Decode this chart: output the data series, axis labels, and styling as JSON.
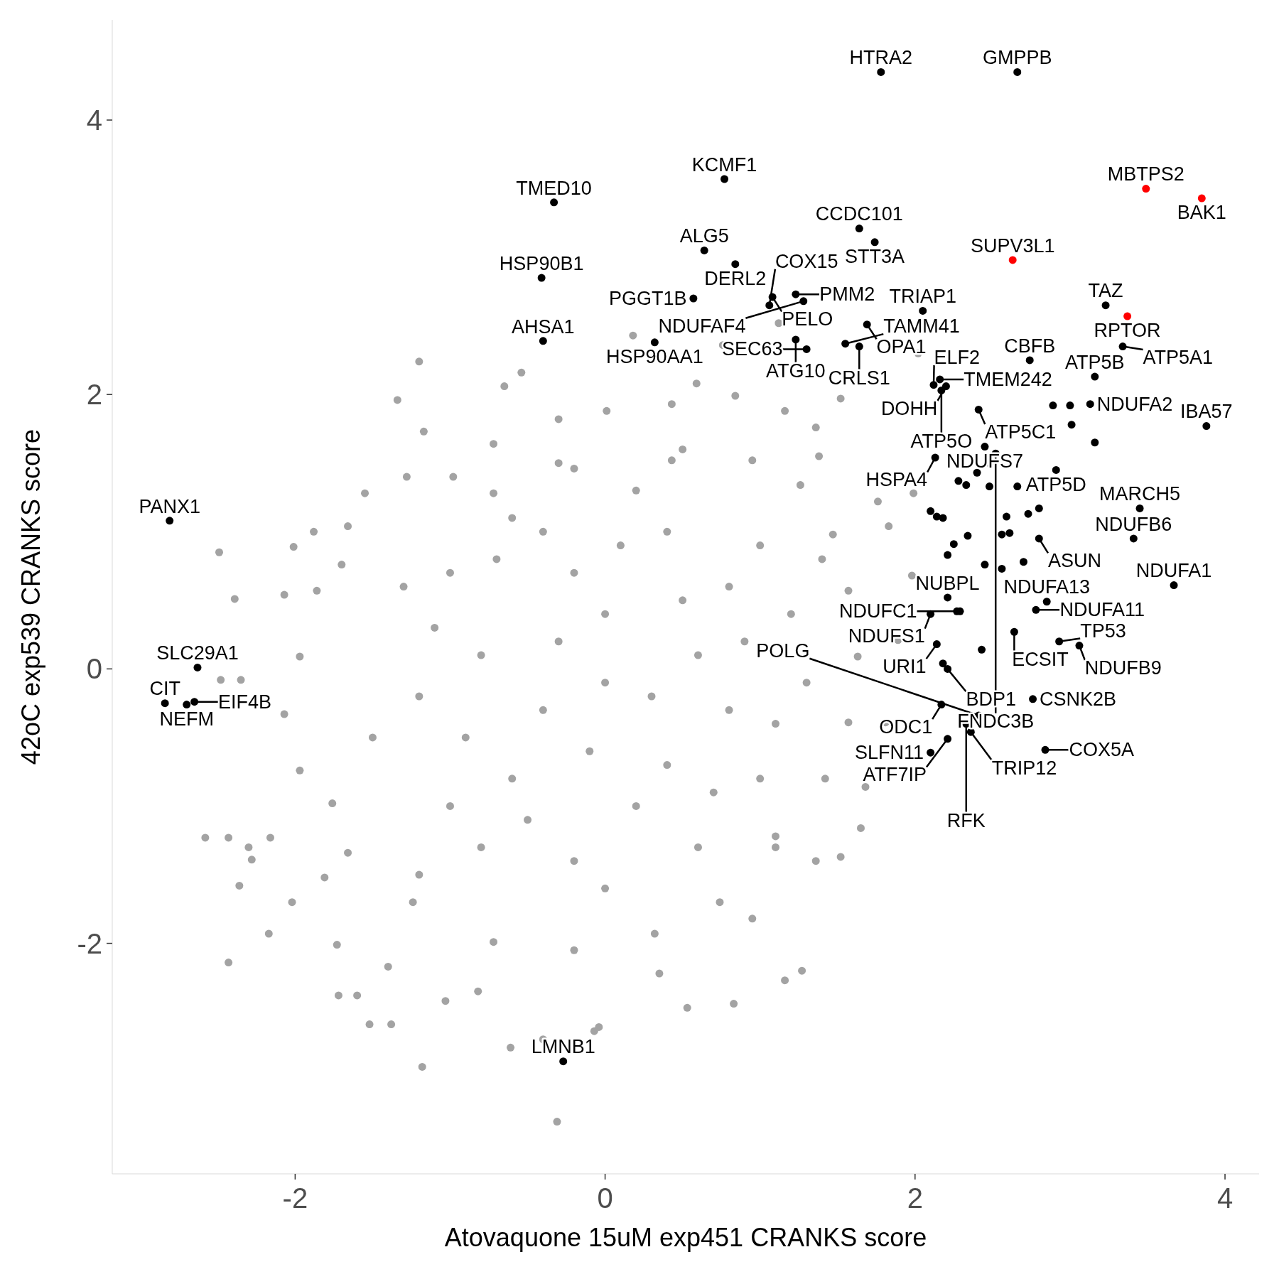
{
  "chart_data": {
    "type": "scatter",
    "xlabel": "Atovaquone 15uM exp451 CRANKS score",
    "ylabel": "42oC exp539 CRANKS score",
    "xlim": [
      -3.18,
      4.22
    ],
    "ylim": [
      -3.68,
      4.73
    ],
    "xticks": [
      -2,
      0,
      2,
      4
    ],
    "yticks": [
      -2,
      0,
      2,
      4
    ],
    "grid": false,
    "marker": "circle",
    "series": [
      {
        "color": "#a3a3a3",
        "x": [
          -2.49,
          -2.39,
          -2.48,
          -2.35,
          -2.58,
          -2.43,
          -2.3,
          -2.28,
          -2.36,
          -2.43,
          -2.16,
          -2.17,
          -2.01,
          -1.88,
          -2.07,
          -1.7,
          -1.2,
          -1.34,
          -1.17,
          -1.28,
          -0.65,
          -0.54,
          0.18,
          0.59,
          0.76,
          1.12,
          2.02,
          1.52,
          1.38,
          1.76,
          1.98,
          1.89,
          1.81,
          1.65,
          1.52,
          1.16,
          1.27,
          0.83,
          0.35,
          -0.04,
          -0.07,
          -0.4,
          -0.61,
          -0.31,
          -1.18,
          -1.38,
          -1.52,
          -1.72,
          -1.73,
          -1.6,
          -1.03,
          -2.02,
          -1.81,
          -1.4,
          -0.82,
          0.53,
          0.95,
          1.36,
          1.68,
          1.99,
          1.83,
          1.36,
          1.16,
          0.84,
          0.43,
          0.01,
          -0.3,
          -0.72,
          -0.98,
          -1.55,
          -1.66,
          -1.86,
          -1.97,
          -2.07,
          -1.97,
          -1.76,
          -1.66,
          -1.24,
          -0.72,
          -0.2,
          0.32,
          0.74,
          1.1,
          1.42,
          1.57,
          1.63,
          1.57,
          1.47,
          1.26,
          0.95,
          0.43,
          -0.2,
          -0.72,
          -1.1,
          -0.9,
          -0.7,
          -0.5,
          -0.3,
          -0.1,
          0.1,
          0.3,
          0.5,
          0.7,
          0.9,
          1.1,
          -1.0,
          -0.6,
          -0.2,
          0.2,
          0.6,
          1.0,
          -1.2,
          1.2,
          -0.8,
          -0.4,
          0.0,
          0.4,
          0.8,
          -0.6,
          -0.2,
          0.2,
          0.6,
          1.0,
          -1.0,
          -0.4,
          0.0,
          0.4,
          0.8,
          -1.3,
          1.3,
          -0.8,
          0.0,
          0.5,
          -0.3,
          -1.5,
          1.4,
          -1.2,
          1.1
        ],
        "values": [
          0.85,
          0.51,
          -0.08,
          -0.08,
          -1.23,
          -1.23,
          -1.3,
          -1.39,
          -1.58,
          -2.14,
          -1.23,
          -1.93,
          0.89,
          1.0,
          0.54,
          0.76,
          2.24,
          1.96,
          1.73,
          1.4,
          2.06,
          2.16,
          2.43,
          2.08,
          2.36,
          2.52,
          2.3,
          1.97,
          1.55,
          1.22,
          0.68,
          0.21,
          -0.39,
          -1.16,
          -1.37,
          -2.27,
          -2.2,
          -2.44,
          -2.22,
          -2.61,
          -2.64,
          -2.7,
          -2.76,
          -3.3,
          -2.9,
          -2.59,
          -2.59,
          -2.38,
          -2.01,
          -2.38,
          -2.42,
          -1.7,
          -1.52,
          -2.17,
          -2.35,
          -2.47,
          -1.82,
          -1.4,
          -0.86,
          1.28,
          1.04,
          1.76,
          1.88,
          1.99,
          1.93,
          1.88,
          1.82,
          1.64,
          1.4,
          1.28,
          1.04,
          0.57,
          0.09,
          -0.33,
          -0.74,
          -0.98,
          -1.34,
          -1.7,
          -1.99,
          -2.05,
          -1.93,
          -1.7,
          -1.22,
          -0.8,
          -0.39,
          0.09,
          0.57,
          0.98,
          1.34,
          1.52,
          1.52,
          1.46,
          1.28,
          0.3,
          -0.5,
          0.8,
          -1.1,
          0.2,
          -0.6,
          0.9,
          -0.2,
          0.5,
          -0.9,
          0.2,
          -0.4,
          -1.0,
          1.1,
          -1.4,
          1.3,
          -1.3,
          0.9,
          -0.2,
          0.4,
          0.1,
          -0.3,
          0.4,
          -0.7,
          0.6,
          -0.8,
          0.7,
          -1.0,
          0.1,
          -0.8,
          0.7,
          1.0,
          -0.1,
          1.0,
          -0.3,
          0.6,
          -0.1,
          -1.3,
          -1.6,
          1.6,
          1.5,
          -0.5,
          0.8,
          -1.5,
          -1.3
        ]
      },
      {
        "color": "#000000",
        "x": [
          1.78,
          2.66,
          0.77,
          -0.33,
          1.64,
          1.74,
          0.64,
          0.84,
          -0.41,
          1.23,
          1.08,
          1.28,
          0.57,
          1.06,
          2.05,
          1.69,
          -0.4,
          0.32,
          1.64,
          1.23,
          1.3,
          1.55,
          2.16,
          2.2,
          2.12,
          2.17,
          2.41,
          2.74,
          3.16,
          3.34,
          3.23,
          3.13,
          3.88,
          2.45,
          2.13,
          2.52,
          2.91,
          3.45,
          3.41,
          2.8,
          2.85,
          3.67,
          2.78,
          2.21,
          2.29,
          2.1,
          2.14,
          2.64,
          2.93,
          3.06,
          2.18,
          2.41,
          2.76,
          2.17,
          2.33,
          2.36,
          2.84,
          2.1,
          2.21,
          -2.81,
          -2.63,
          -2.84,
          -2.7,
          -2.65,
          -0.27,
          2.1,
          2.14,
          2.18,
          2.28,
          2.33,
          2.4,
          2.48,
          2.48,
          2.66,
          2.73,
          2.8,
          2.59,
          2.56,
          2.61,
          2.34,
          2.25,
          2.21,
          2.45,
          2.56,
          2.7,
          3.0,
          2.89,
          3.01,
          3.16,
          2.27,
          2.21,
          2.43
        ],
        "values": [
          4.35,
          4.35,
          3.57,
          3.4,
          3.21,
          3.11,
          3.05,
          2.95,
          2.85,
          2.73,
          2.71,
          2.68,
          2.7,
          2.65,
          2.61,
          2.51,
          2.39,
          2.38,
          2.35,
          2.4,
          2.33,
          2.37,
          2.11,
          2.06,
          2.07,
          2.03,
          1.89,
          2.25,
          2.13,
          2.35,
          2.65,
          1.93,
          1.77,
          1.62,
          1.54,
          1.57,
          1.45,
          1.17,
          0.95,
          0.95,
          0.49,
          0.61,
          0.43,
          0.52,
          0.42,
          0.4,
          0.18,
          0.27,
          0.2,
          0.17,
          0.04,
          -0.34,
          -0.22,
          -0.26,
          -0.4,
          -0.46,
          -0.59,
          -0.61,
          -0.51,
          1.08,
          0.01,
          -0.25,
          -0.26,
          -0.24,
          -2.86,
          1.15,
          1.11,
          1.1,
          1.37,
          1.34,
          1.43,
          1.5,
          1.33,
          1.33,
          1.13,
          1.17,
          1.11,
          0.98,
          0.99,
          0.97,
          0.91,
          0.83,
          0.76,
          0.73,
          0.78,
          1.92,
          1.92,
          1.78,
          1.65,
          0.42,
          0.0,
          0.14
        ]
      },
      {
        "color": "#ff0000",
        "x": [
          3.49,
          3.85,
          2.63,
          3.37
        ],
        "values": [
          3.5,
          3.43,
          2.98,
          2.57
        ]
      }
    ],
    "annotations": [
      {
        "text": "HTRA2",
        "x": 1.78,
        "y": 4.35
      },
      {
        "text": "GMPPB",
        "x": 2.66,
        "y": 4.35
      },
      {
        "text": "MBTPS2",
        "x": 3.49,
        "y": 3.5
      },
      {
        "text": "BAK1",
        "x": 3.85,
        "y": 3.43
      },
      {
        "text": "KCMF1",
        "x": 0.77,
        "y": 3.57
      },
      {
        "text": "TMED10",
        "x": -0.33,
        "y": 3.4
      },
      {
        "text": "CCDC101",
        "x": 1.64,
        "y": 3.21
      },
      {
        "text": "STT3A",
        "x": 1.74,
        "y": 3.11
      },
      {
        "text": "ALG5",
        "x": 0.64,
        "y": 3.05
      },
      {
        "text": "DERL2",
        "x": 0.84,
        "y": 2.95
      },
      {
        "text": "HSP90B1",
        "x": -0.41,
        "y": 2.85
      },
      {
        "text": "SUPV3L1",
        "x": 2.63,
        "y": 2.98
      },
      {
        "text": "PMM2",
        "x": 1.23,
        "y": 2.73
      },
      {
        "text": "PELO",
        "x": 1.08,
        "y": 2.71
      },
      {
        "text": "NDUFAF4",
        "x": 1.28,
        "y": 2.68
      },
      {
        "text": "PGGT1B",
        "x": 0.57,
        "y": 2.7
      },
      {
        "text": "COX15",
        "x": 1.06,
        "y": 2.65
      },
      {
        "text": "TRIAP1",
        "x": 2.05,
        "y": 2.61
      },
      {
        "text": "OPA1",
        "x": 1.69,
        "y": 2.51
      },
      {
        "text": "TAZ",
        "x": 3.23,
        "y": 2.65
      },
      {
        "text": "RPTOR",
        "x": 3.37,
        "y": 2.57
      },
      {
        "text": "AHSA1",
        "x": -0.4,
        "y": 2.39
      },
      {
        "text": "HSP90AA1",
        "x": 0.32,
        "y": 2.38
      },
      {
        "text": "CRLS1",
        "x": 1.64,
        "y": 2.35
      },
      {
        "text": "ATG10",
        "x": 1.23,
        "y": 2.4
      },
      {
        "text": "SEC63",
        "x": 1.3,
        "y": 2.33
      },
      {
        "text": "TAMM41",
        "x": 1.55,
        "y": 2.37
      },
      {
        "text": "TMEM242",
        "x": 2.16,
        "y": 2.11
      },
      {
        "text": "DOHH",
        "x": 2.2,
        "y": 2.06
      },
      {
        "text": "ELF2",
        "x": 2.12,
        "y": 2.07
      },
      {
        "text": "ATP5O",
        "x": 2.17,
        "y": 2.03
      },
      {
        "text": "ATP5C1",
        "x": 2.41,
        "y": 1.89
      },
      {
        "text": "CBFB",
        "x": 2.74,
        "y": 2.25
      },
      {
        "text": "ATP5B",
        "x": 3.16,
        "y": 2.13
      },
      {
        "text": "ATP5A1",
        "x": 3.34,
        "y": 2.35
      },
      {
        "text": "NDUFA2",
        "x": 3.13,
        "y": 1.93
      },
      {
        "text": "IBA57",
        "x": 3.88,
        "y": 1.77
      },
      {
        "text": "NDUFS7",
        "x": 2.45,
        "y": 1.62
      },
      {
        "text": "HSPA4",
        "x": 2.13,
        "y": 1.54
      },
      {
        "text": "FNDC3B",
        "x": 2.52,
        "y": 1.57
      },
      {
        "text": "ATP5D",
        "x": 2.91,
        "y": 1.45
      },
      {
        "text": "MARCH5",
        "x": 3.45,
        "y": 1.17
      },
      {
        "text": "NDUFB6",
        "x": 3.41,
        "y": 0.95
      },
      {
        "text": "ASUN",
        "x": 2.8,
        "y": 0.95
      },
      {
        "text": "NDUFA13",
        "x": 2.85,
        "y": 0.49
      },
      {
        "text": "NDUFA1",
        "x": 3.67,
        "y": 0.61
      },
      {
        "text": "NDUFA11",
        "x": 2.78,
        "y": 0.43
      },
      {
        "text": "NUBPL",
        "x": 2.21,
        "y": 0.52
      },
      {
        "text": "NDUFC1",
        "x": 2.29,
        "y": 0.42
      },
      {
        "text": "NDUFS1",
        "x": 2.1,
        "y": 0.4
      },
      {
        "text": "URI1",
        "x": 2.14,
        "y": 0.18
      },
      {
        "text": "ECSIT",
        "x": 2.64,
        "y": 0.27
      },
      {
        "text": "TP53",
        "x": 2.93,
        "y": 0.2
      },
      {
        "text": "NDUFB9",
        "x": 3.06,
        "y": 0.17
      },
      {
        "text": "BDP1",
        "x": 2.18,
        "y": 0.04
      },
      {
        "text": "POLG",
        "x": 2.41,
        "y": -0.34
      },
      {
        "text": "CSNK2B",
        "x": 2.76,
        "y": -0.22
      },
      {
        "text": "ODC1",
        "x": 2.17,
        "y": -0.26
      },
      {
        "text": "RFK",
        "x": 2.33,
        "y": -0.4
      },
      {
        "text": "TRIP12",
        "x": 2.36,
        "y": -0.46
      },
      {
        "text": "COX5A",
        "x": 2.84,
        "y": -0.59
      },
      {
        "text": "SLFN11",
        "x": 2.1,
        "y": -0.61
      },
      {
        "text": "ATF7IP",
        "x": 2.21,
        "y": -0.51
      },
      {
        "text": "PANX1",
        "x": -2.81,
        "y": 1.08
      },
      {
        "text": "SLC29A1",
        "x": -2.63,
        "y": 0.01
      },
      {
        "text": "CIT",
        "x": -2.84,
        "y": -0.25
      },
      {
        "text": "NEFM",
        "x": -2.7,
        "y": -0.26
      },
      {
        "text": "EIF4B",
        "x": -2.65,
        "y": -0.24
      },
      {
        "text": "LMNB1",
        "x": -0.27,
        "y": -2.86
      }
    ]
  }
}
